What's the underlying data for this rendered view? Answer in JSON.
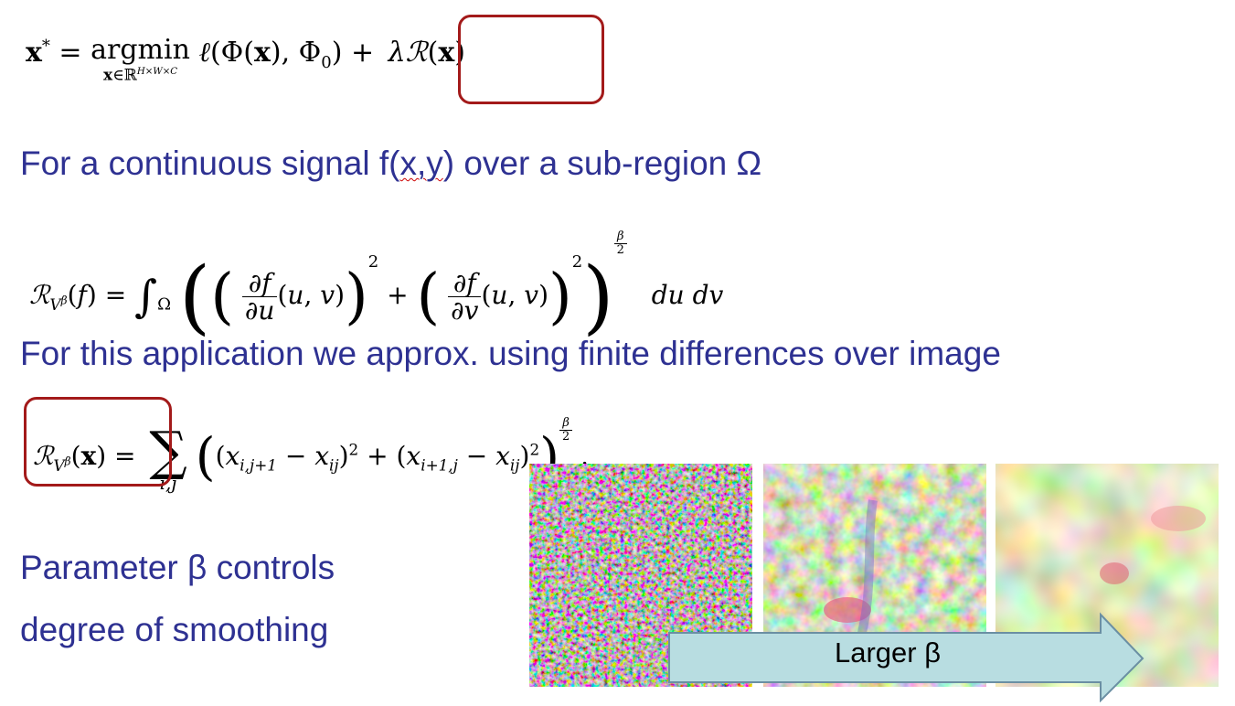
{
  "equations": {
    "objective": {
      "lhs": "x* =",
      "argmin_op": "argmin",
      "argmin_sub": "x∈ℝ^(H×W×C)",
      "loss": "ℓ(Φ(x), Φ₀) +",
      "regularizer": "λℛ(x)"
    },
    "continuous_tv": "ℛ_{V^β}(f) = ∫_Ω ( (∂f/∂u (u,v))² + (∂f/∂v (u,v))² )^{β/2} du dv",
    "discrete_tv": "ℛ_{V^β}(x) = Σ_{i,j} ((x_{i,j+1} − x_{ij})² + (x_{i+1,j} − x_{ij})²)^{β/2} ."
  },
  "text": {
    "line1_before": "For a continuous signal f(",
    "line1_squiggle": "x,y",
    "line1_after": ") over a sub-region Ω",
    "line2": "For this application we approx. using finite differences over image",
    "param_line1": "Parameter β controls",
    "param_line2": "degree of smoothing"
  },
  "arrow": {
    "label": "Larger β",
    "fill": "#b8dde1",
    "stroke": "#6b8fa3"
  },
  "colors": {
    "text_blue": "#2e3192",
    "box_red": "#a31a1a"
  },
  "images": [
    {
      "name": "low-beta-reconstruction"
    },
    {
      "name": "mid-beta-reconstruction"
    },
    {
      "name": "high-beta-reconstruction"
    }
  ]
}
